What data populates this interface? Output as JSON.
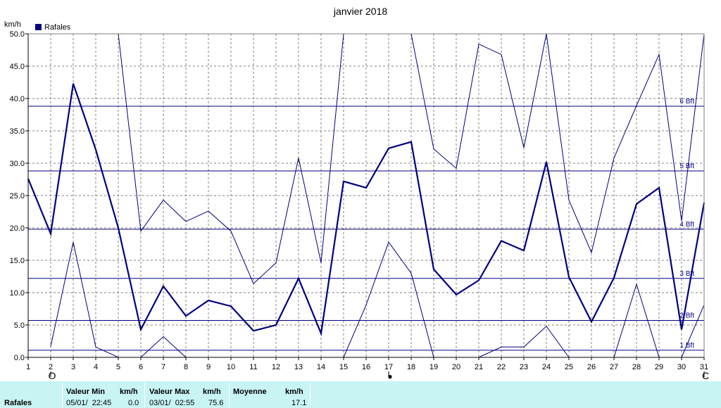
{
  "chart_data": {
    "type": "line",
    "title": "janvier 2018",
    "ylabel": "km/h",
    "legend": "Rafales",
    "ylim": [
      0,
      50
    ],
    "yticks": [
      "0.0",
      "5.0",
      "10.0",
      "15.0",
      "20.0",
      "25.0",
      "30.0",
      "35.0",
      "40.0",
      "45.0",
      "50.0"
    ],
    "x": [
      1,
      2,
      3,
      4,
      5,
      6,
      7,
      8,
      9,
      10,
      11,
      12,
      13,
      14,
      15,
      16,
      17,
      18,
      19,
      20,
      21,
      22,
      23,
      24,
      25,
      26,
      27,
      28,
      29,
      30,
      31
    ],
    "series": [
      {
        "name": "Rafales",
        "values": [
          27.6,
          19.1,
          42.3,
          32.1,
          20.0,
          4.3,
          11.0,
          6.4,
          8.8,
          7.9,
          4.1,
          5.0,
          12.2,
          3.7,
          27.2,
          26.2,
          32.3,
          33.3,
          13.6,
          9.7,
          11.9,
          18.0,
          16.5,
          30.2,
          12.4,
          5.5,
          12.3,
          23.7,
          26.2,
          4.3,
          23.9
        ]
      },
      {
        "values": [
          null,
          1.7,
          17.8,
          1.6,
          0.0,
          0.0,
          3.2,
          0.0,
          null,
          null,
          null,
          null,
          null,
          null,
          0.0,
          8.1,
          17.8,
          13.0,
          0.0,
          null,
          0.0,
          1.6,
          1.6,
          4.8,
          0.0,
          null,
          0.0,
          11.3,
          0.0,
          0.0,
          8.1
        ]
      },
      {
        "values": [
          null,
          null,
          null,
          null,
          50.0,
          19.5,
          24.3,
          21.0,
          22.6,
          19.5,
          11.4,
          14.6,
          30.8,
          14.6,
          50.0,
          null,
          null,
          50.0,
          32.2,
          29.2,
          48.4,
          46.8,
          32.4,
          50.0,
          24.3,
          16.2,
          30.8,
          38.9,
          46.8,
          21.1,
          50.0
        ]
      }
    ],
    "beaufort": [
      {
        "label": "1 Bft",
        "value": 1.1
      },
      {
        "label": "2 Bft",
        "value": 5.7
      },
      {
        "label": "3 Bft",
        "value": 12.2
      },
      {
        "label": "4 Bft",
        "value": 19.8
      },
      {
        "label": "5 Bft",
        "value": 28.8
      },
      {
        "label": "6 Bft",
        "value": 38.8
      }
    ],
    "moon_phases": [
      {
        "day": 2,
        "symbol": "O"
      },
      {
        "day": 17,
        "symbol": "●"
      },
      {
        "day": 31,
        "symbol": "C"
      }
    ],
    "grid": true,
    "legend_position": "top-left"
  },
  "footer": {
    "row_label": "Rafales",
    "min_header": "Valeur Min",
    "min_unit": "km/h",
    "min_date": "05/01/  22:45",
    "min_value": "0.0",
    "max_header": "Valeur Max",
    "max_unit": "km/h",
    "max_date": "03/01/  02:55",
    "max_value": "75.6",
    "mean_header": "Moyenne",
    "mean_unit": "km/h",
    "mean_value": "17.1"
  },
  "colors": {
    "series": "#00007f",
    "grid": "#7f7f7f",
    "footer_bg": "#c8f4f4"
  }
}
